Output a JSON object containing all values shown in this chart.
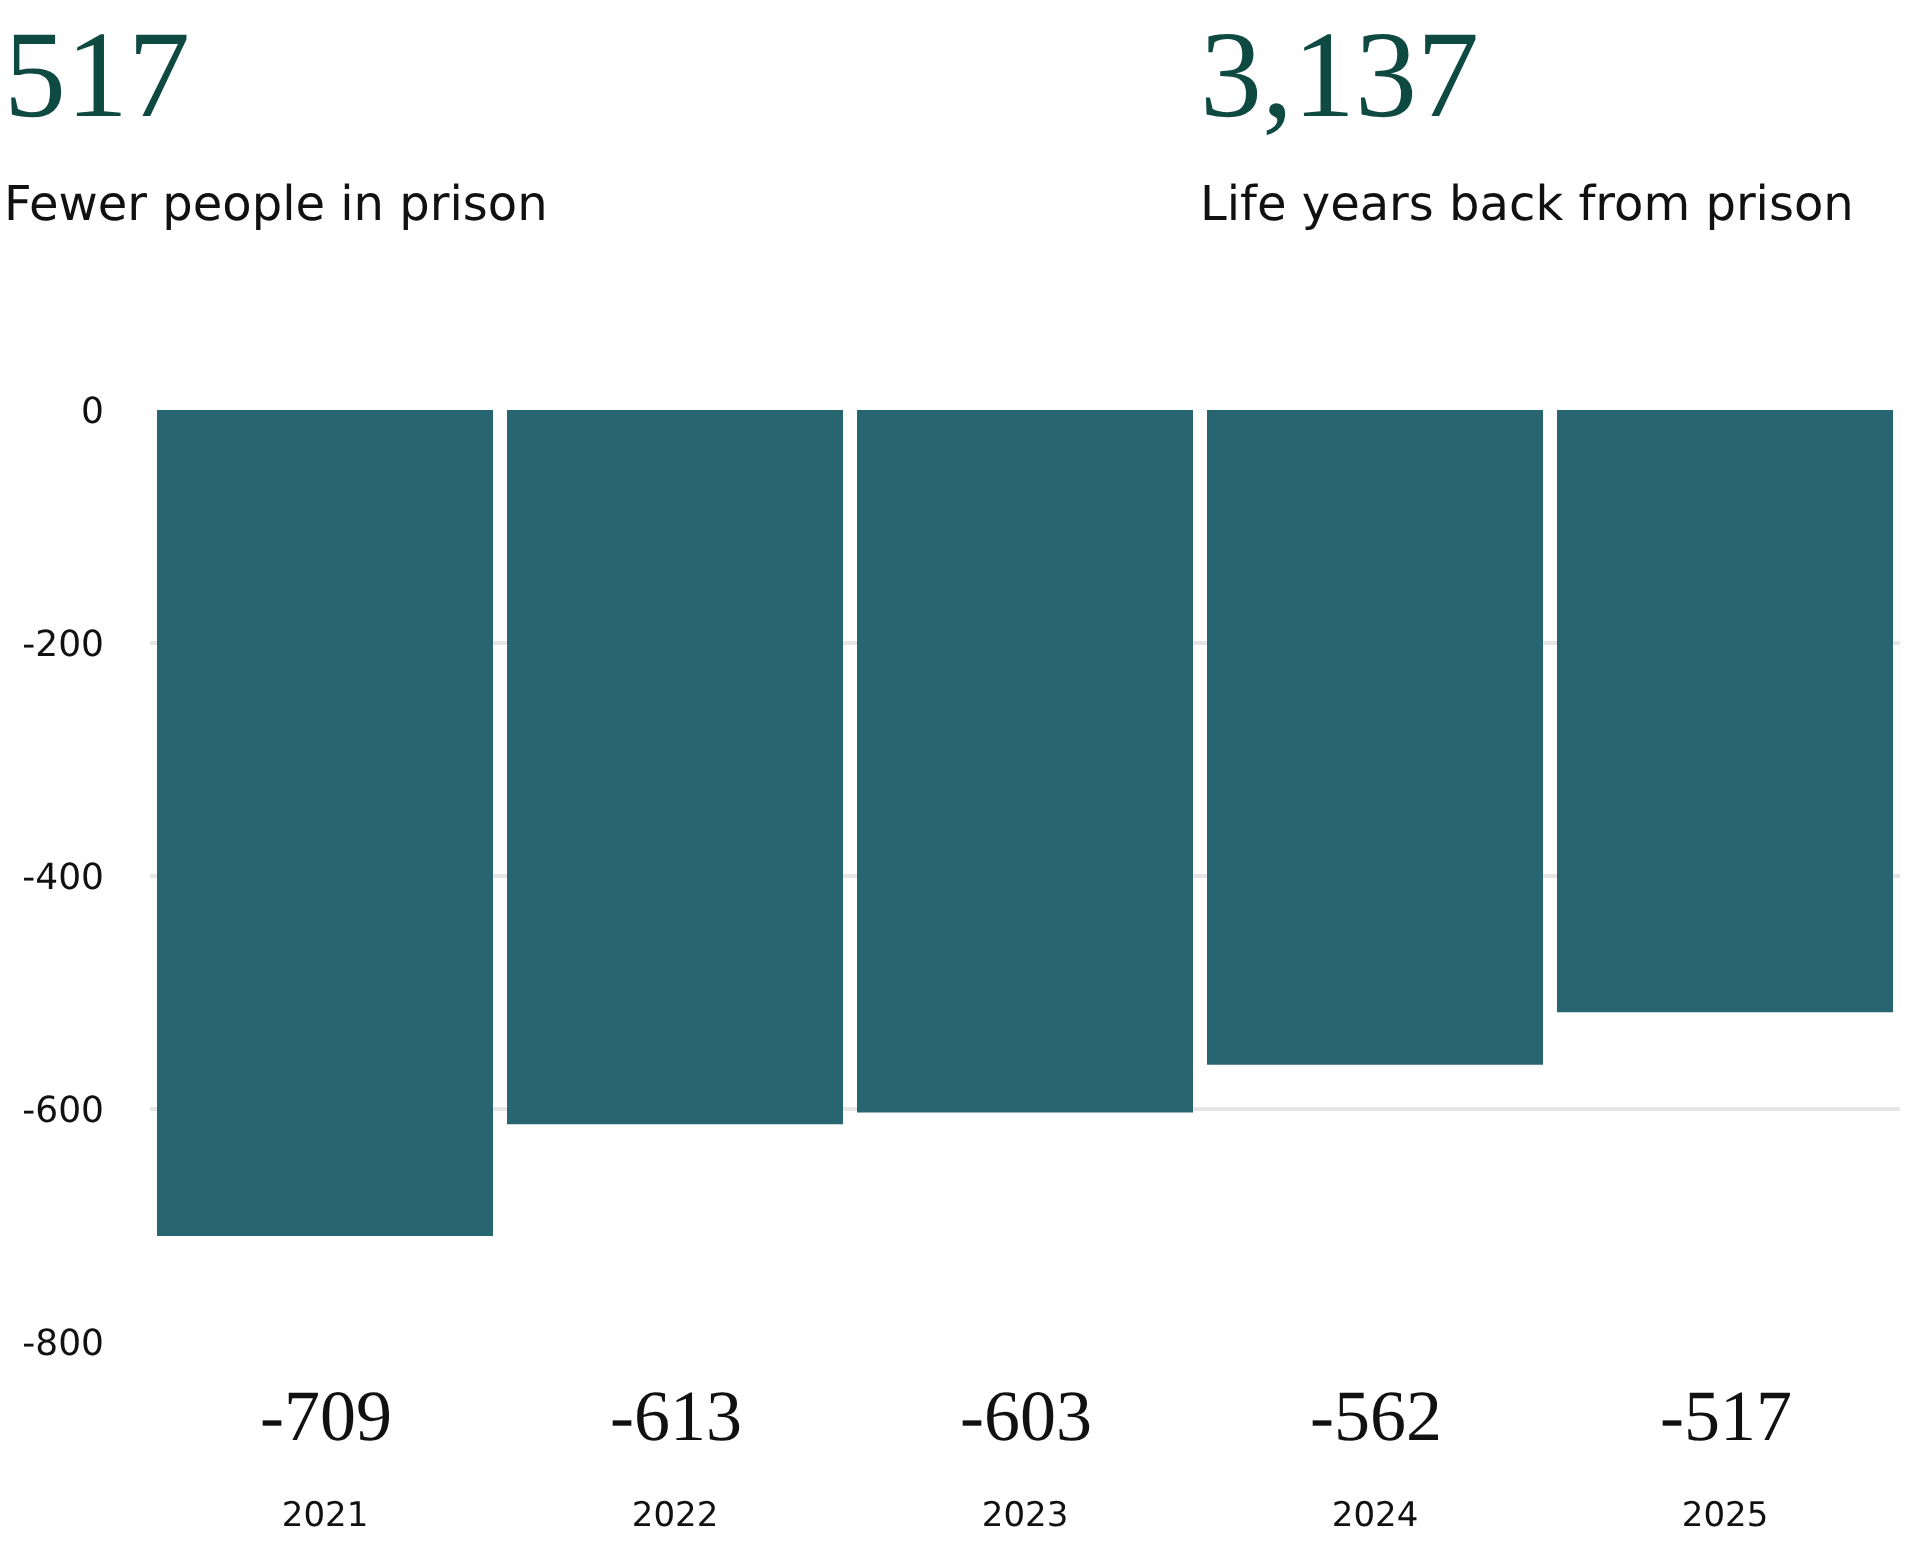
{
  "chart_data": {
    "type": "bar",
    "annotations": [
      "517",
      "Fewer people in prison",
      "3,137",
      "Life years back from prison"
    ],
    "categories": [
      "2021",
      "2022",
      "2023",
      "2024",
      "2025"
    ],
    "values": [
      -709,
      -613,
      -603,
      -562,
      -517
    ],
    "color": "#276570",
    "ylim": [
      -800,
      0
    ],
    "yticks": [
      0,
      -200,
      -400,
      -600,
      -800
    ],
    "grid": "y",
    "data_labels": true,
    "legend": false
  }
}
